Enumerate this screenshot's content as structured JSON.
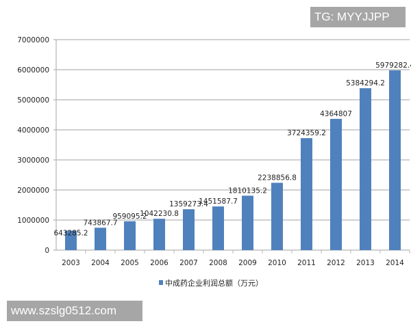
{
  "chart_data": {
    "type": "bar",
    "categories": [
      "2003",
      "2004",
      "2005",
      "2006",
      "2007",
      "2008",
      "2009",
      "2010",
      "2011",
      "2012",
      "2013",
      "2014"
    ],
    "series": [
      {
        "name": "中成药企业利润总额（万元）",
        "values": [
          643285.2,
          743867.7,
          959095.2,
          1042230.8,
          1359273.4,
          1451587.7,
          1810135.2,
          2238856.8,
          3724359.2,
          4364807,
          5384294.2,
          5979282.4
        ],
        "labels": [
          "643285.2",
          "743867.7",
          "959095.2",
          "1042230.8",
          "1359273.4",
          "1451587.7",
          "1810135.2",
          "2238856.8",
          "3724359.2",
          "4364807",
          "5384294.2",
          "5979282.4"
        ]
      }
    ],
    "yticks": [
      "0",
      "1000000",
      "2000000",
      "3000000",
      "4000000",
      "5000000",
      "6000000",
      "7000000"
    ],
    "ylim": [
      0,
      7000000
    ],
    "grid": true,
    "legend": "bottom",
    "color": "#4f81bd"
  },
  "watermarks": {
    "top": "TG: MYYJJPP",
    "bottom": "www.szslg0512.com"
  }
}
